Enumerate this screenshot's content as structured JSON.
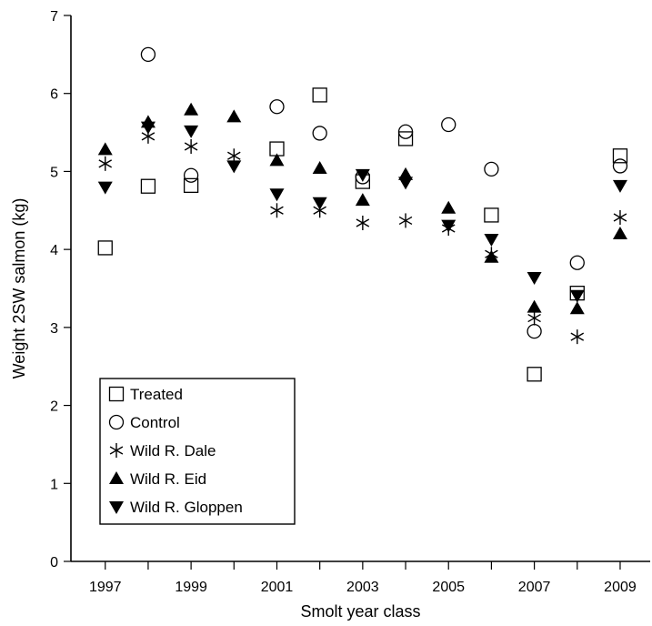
{
  "chart_data": {
    "type": "scatter",
    "xlabel": "Smolt year class",
    "ylabel": "Weight 2SW salmon (kg)",
    "xlim": [
      1996.2,
      2009.7
    ],
    "ylim": [
      0,
      7
    ],
    "x_ticks": [
      1997,
      1998,
      1999,
      2000,
      2001,
      2002,
      2003,
      2004,
      2005,
      2006,
      2007,
      2008,
      2009
    ],
    "x_tick_labels": [
      "1997",
      "1999",
      "2001",
      "2003",
      "2005",
      "2007",
      "2009"
    ],
    "y_ticks": [
      0,
      1,
      2,
      3,
      4,
      5,
      6,
      7
    ],
    "y_tick_labels": [
      "0",
      "1",
      "2",
      "3",
      "4",
      "5",
      "6",
      "7"
    ],
    "legend_position": "bottom-left",
    "grid": false,
    "series": [
      {
        "name": "Treated",
        "marker": "open-square",
        "points": [
          [
            1997,
            4.02
          ],
          [
            1998,
            4.81
          ],
          [
            1999,
            4.82
          ],
          [
            2001,
            5.29
          ],
          [
            2002,
            5.98
          ],
          [
            2003,
            4.87
          ],
          [
            2004,
            5.42
          ],
          [
            2006,
            4.44
          ],
          [
            2007,
            2.4
          ],
          [
            2008,
            3.44
          ],
          [
            2009,
            5.2
          ]
        ]
      },
      {
        "name": "Control",
        "marker": "open-circle",
        "points": [
          [
            1998,
            6.5
          ],
          [
            1999,
            4.95
          ],
          [
            2001,
            5.83
          ],
          [
            2002,
            5.49
          ],
          [
            2003,
            4.93
          ],
          [
            2004,
            5.51
          ],
          [
            2005,
            5.6
          ],
          [
            2006,
            5.03
          ],
          [
            2007,
            2.95
          ],
          [
            2008,
            3.83
          ],
          [
            2009,
            5.07
          ]
        ]
      },
      {
        "name": "Wild R. Dale",
        "marker": "asterisk",
        "points": [
          [
            1997,
            5.1
          ],
          [
            1998,
            5.45
          ],
          [
            1999,
            5.32
          ],
          [
            2000,
            5.2
          ],
          [
            2001,
            4.5
          ],
          [
            2002,
            4.5
          ],
          [
            2003,
            4.34
          ],
          [
            2004,
            4.37
          ],
          [
            2005,
            4.27
          ],
          [
            2006,
            3.94
          ],
          [
            2007,
            3.12
          ],
          [
            2008,
            2.88
          ],
          [
            2009,
            4.41
          ]
        ]
      },
      {
        "name": "Wild R. Eid",
        "marker": "filled-triangle-up",
        "points": [
          [
            1997,
            5.28
          ],
          [
            1998,
            5.63
          ],
          [
            1999,
            5.79
          ],
          [
            2000,
            5.7
          ],
          [
            2001,
            5.14
          ],
          [
            2002,
            5.04
          ],
          [
            2003,
            4.63
          ],
          [
            2004,
            4.96
          ],
          [
            2005,
            4.53
          ],
          [
            2006,
            3.9
          ],
          [
            2007,
            3.26
          ],
          [
            2008,
            3.24
          ],
          [
            2009,
            4.2
          ]
        ]
      },
      {
        "name": "Wild R. Gloppen",
        "marker": "filled-triangle-down",
        "points": [
          [
            1997,
            4.8
          ],
          [
            1998,
            5.57
          ],
          [
            1999,
            5.52
          ],
          [
            2000,
            5.07
          ],
          [
            2001,
            4.71
          ],
          [
            2002,
            4.6
          ],
          [
            2003,
            4.96
          ],
          [
            2004,
            4.86
          ],
          [
            2005,
            4.31
          ],
          [
            2006,
            4.13
          ],
          [
            2007,
            3.64
          ],
          [
            2008,
            3.41
          ],
          [
            2009,
            4.82
          ]
        ]
      }
    ]
  }
}
